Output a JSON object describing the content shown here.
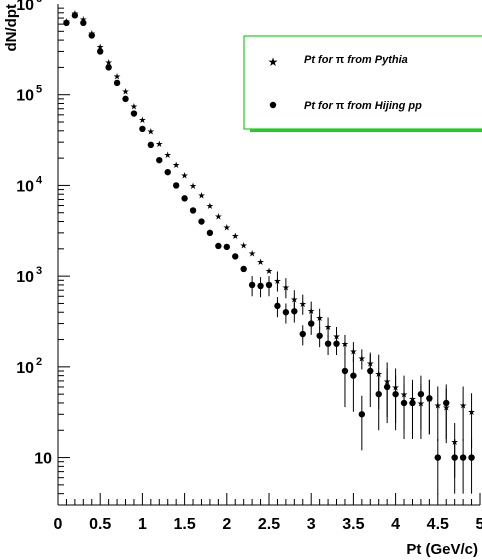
{
  "chart_data": {
    "type": "scatter",
    "title": "",
    "xlabel": "Pt (GeV/c)",
    "ylabel": "dN/dpt",
    "xlim": [
      0,
      5
    ],
    "ylim": [
      3,
      1000000
    ],
    "y_scale": "log",
    "grid": false,
    "legend_position": "top-right",
    "x_ticks": [
      {
        "value": 0,
        "label": "0"
      },
      {
        "value": 0.5,
        "label": "0.5"
      },
      {
        "value": 1,
        "label": "1"
      },
      {
        "value": 1.5,
        "label": "1.5"
      },
      {
        "value": 2,
        "label": "2"
      },
      {
        "value": 2.5,
        "label": "2.5"
      },
      {
        "value": 3,
        "label": "3"
      },
      {
        "value": 3.5,
        "label": "3.5"
      },
      {
        "value": 4,
        "label": "4"
      },
      {
        "value": 4.5,
        "label": "4.5"
      },
      {
        "value": 5,
        "label": "5"
      }
    ],
    "y_ticks": [
      {
        "value": 10,
        "base": "10",
        "exp": ""
      },
      {
        "value": 100,
        "base": "10",
        "exp": "2"
      },
      {
        "value": 1000,
        "base": "10",
        "exp": "3"
      },
      {
        "value": 10000,
        "base": "10",
        "exp": "4"
      },
      {
        "value": 100000,
        "base": "10",
        "exp": "5"
      },
      {
        "value": 1000000,
        "base": "10",
        "exp": "6"
      }
    ],
    "series": [
      {
        "name": "Pt for π from Pythia",
        "marker": "star",
        "points": [
          {
            "x": 0.1,
            "y": 650000
          },
          {
            "x": 0.2,
            "y": 800000
          },
          {
            "x": 0.3,
            "y": 680000
          },
          {
            "x": 0.4,
            "y": 480000
          },
          {
            "x": 0.5,
            "y": 340000
          },
          {
            "x": 0.6,
            "y": 230000
          },
          {
            "x": 0.7,
            "y": 160000
          },
          {
            "x": 0.8,
            "y": 110000
          },
          {
            "x": 0.9,
            "y": 75000
          },
          {
            "x": 1.0,
            "y": 53000
          },
          {
            "x": 1.1,
            "y": 40000
          },
          {
            "x": 1.2,
            "y": 29000
          },
          {
            "x": 1.3,
            "y": 22000
          },
          {
            "x": 1.4,
            "y": 17000
          },
          {
            "x": 1.5,
            "y": 13000
          },
          {
            "x": 1.6,
            "y": 10000
          },
          {
            "x": 1.7,
            "y": 7800
          },
          {
            "x": 1.8,
            "y": 6000
          },
          {
            "x": 1.9,
            "y": 4600
          },
          {
            "x": 2.0,
            "y": 3500
          },
          {
            "x": 2.1,
            "y": 2800
          },
          {
            "x": 2.2,
            "y": 2200
          },
          {
            "x": 2.3,
            "y": 1800
          },
          {
            "x": 2.4,
            "y": 1450
          },
          {
            "x": 2.5,
            "y": 1150
          },
          {
            "x": 2.6,
            "y": 900
          },
          {
            "x": 2.7,
            "y": 760
          },
          {
            "x": 2.8,
            "y": 560
          },
          {
            "x": 2.9,
            "y": 500
          },
          {
            "x": 3.0,
            "y": 420
          },
          {
            "x": 3.1,
            "y": 350
          },
          {
            "x": 3.2,
            "y": 280
          },
          {
            "x": 3.3,
            "y": 220
          },
          {
            "x": 3.4,
            "y": 180
          },
          {
            "x": 3.5,
            "y": 150
          },
          {
            "x": 3.6,
            "y": 125
          },
          {
            "x": 3.7,
            "y": 110
          },
          {
            "x": 3.8,
            "y": 85
          },
          {
            "x": 3.9,
            "y": 70
          },
          {
            "x": 4.0,
            "y": 60
          },
          {
            "x": 4.1,
            "y": 50
          },
          {
            "x": 4.2,
            "y": 45
          },
          {
            "x": 4.3,
            "y": 40
          },
          {
            "x": 4.4,
            "y": 45
          },
          {
            "x": 4.5,
            "y": 38
          },
          {
            "x": 4.6,
            "y": 36
          },
          {
            "x": 4.7,
            "y": 15
          },
          {
            "x": 4.8,
            "y": 38
          },
          {
            "x": 4.9,
            "y": 32
          }
        ]
      },
      {
        "name": "Pt for π from Hijing pp",
        "marker": "circle",
        "points": [
          {
            "x": 0.1,
            "y": 620000
          },
          {
            "x": 0.2,
            "y": 750000
          },
          {
            "x": 0.3,
            "y": 620000
          },
          {
            "x": 0.4,
            "y": 450000
          },
          {
            "x": 0.5,
            "y": 300000
          },
          {
            "x": 0.6,
            "y": 200000
          },
          {
            "x": 0.7,
            "y": 135000
          },
          {
            "x": 0.8,
            "y": 90000
          },
          {
            "x": 0.9,
            "y": 62000
          },
          {
            "x": 1.0,
            "y": 42000
          },
          {
            "x": 1.1,
            "y": 28000
          },
          {
            "x": 1.2,
            "y": 19000
          },
          {
            "x": 1.3,
            "y": 14000
          },
          {
            "x": 1.4,
            "y": 10000
          },
          {
            "x": 1.5,
            "y": 7200
          },
          {
            "x": 1.6,
            "y": 5300
          },
          {
            "x": 1.7,
            "y": 4000
          },
          {
            "x": 1.8,
            "y": 3000
          },
          {
            "x": 1.9,
            "y": 2150
          },
          {
            "x": 2.0,
            "y": 2100
          },
          {
            "x": 2.1,
            "y": 1650
          },
          {
            "x": 2.2,
            "y": 1200
          },
          {
            "x": 2.3,
            "y": 800
          },
          {
            "x": 2.4,
            "y": 780
          },
          {
            "x": 2.5,
            "y": 800
          },
          {
            "x": 2.6,
            "y": 470
          },
          {
            "x": 2.7,
            "y": 400
          },
          {
            "x": 2.8,
            "y": 410
          },
          {
            "x": 2.9,
            "y": 230
          },
          {
            "x": 3.0,
            "y": 300
          },
          {
            "x": 3.1,
            "y": 220
          },
          {
            "x": 3.2,
            "y": 180
          },
          {
            "x": 3.3,
            "y": 180
          },
          {
            "x": 3.4,
            "y": 90
          },
          {
            "x": 3.5,
            "y": 80
          },
          {
            "x": 3.6,
            "y": 30
          },
          {
            "x": 3.7,
            "y": 90
          },
          {
            "x": 3.8,
            "y": 50
          },
          {
            "x": 3.9,
            "y": 60
          },
          {
            "x": 4.0,
            "y": 50
          },
          {
            "x": 4.1,
            "y": 40
          },
          {
            "x": 4.2,
            "y": 40
          },
          {
            "x": 4.3,
            "y": 50
          },
          {
            "x": 4.4,
            "y": 45
          },
          {
            "x": 4.5,
            "y": 10
          },
          {
            "x": 4.6,
            "y": 40
          },
          {
            "x": 4.7,
            "y": 10
          },
          {
            "x": 4.8,
            "y": 10
          },
          {
            "x": 4.9,
            "y": 10
          }
        ]
      }
    ]
  },
  "legend": {
    "entries": [
      {
        "prefix": "Pt for ",
        "symbol": "π",
        "suffix": " from Pythia"
      },
      {
        "prefix": "Pt for ",
        "symbol": "π",
        "suffix": " from Hijing pp"
      }
    ],
    "border_color": "#1fce1f"
  }
}
